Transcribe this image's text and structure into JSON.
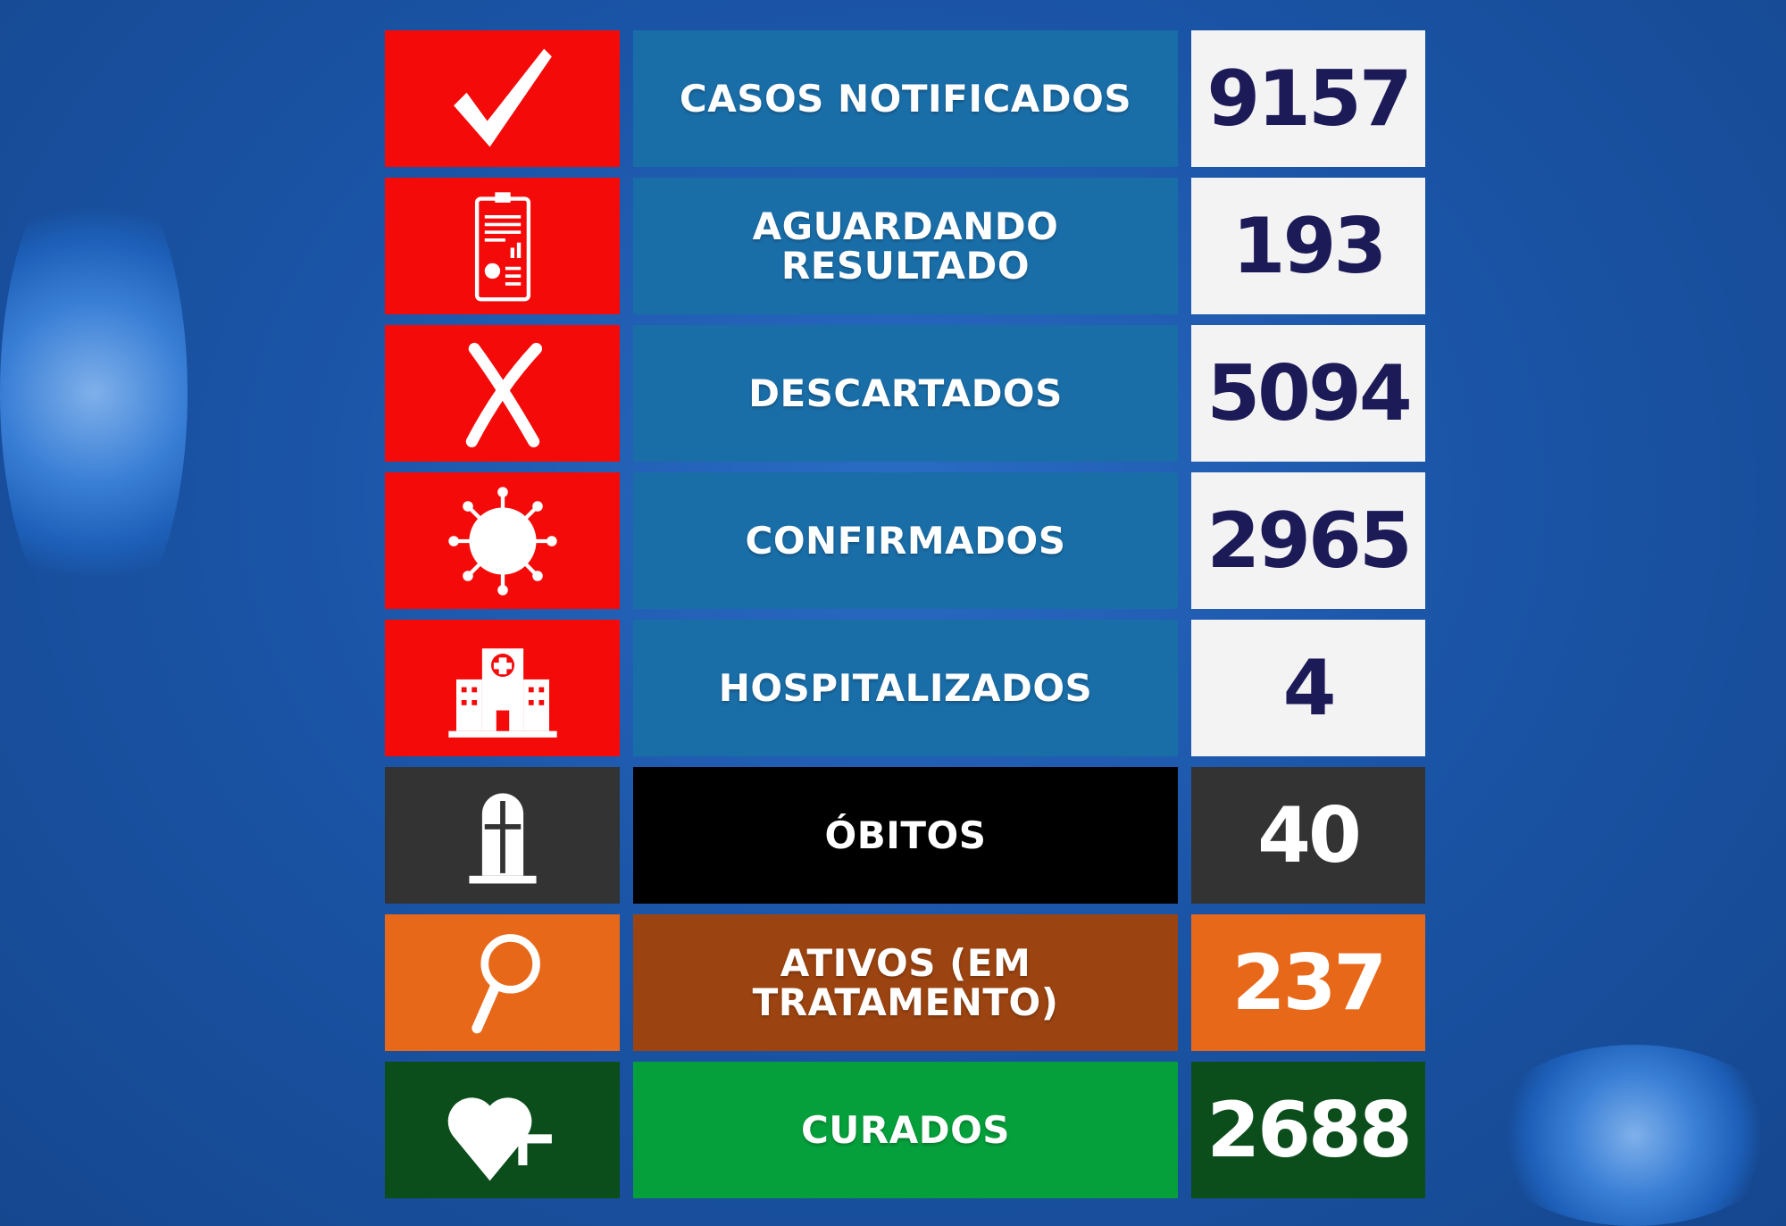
{
  "rows": [
    {
      "label": "CASOS NOTIFICADOS",
      "value": "9157",
      "icon": "checkmark-icon"
    },
    {
      "label": "AGUARDANDO RESULTADO",
      "value": "193",
      "icon": "clipboard-report-icon"
    },
    {
      "label": "DESCARTADOS",
      "value": "5094",
      "icon": "x-mark-icon"
    },
    {
      "label": "CONFIRMADOS",
      "value": "2965",
      "icon": "virus-icon"
    },
    {
      "label": "HOSPITALIZADOS",
      "value": "4",
      "icon": "hospital-icon"
    },
    {
      "label": "ÓBITOS",
      "value": "40",
      "icon": "tombstone-icon"
    },
    {
      "label": "ATIVOS (EM TRATAMENTO)",
      "value": "237",
      "icon": "magnifier-icon"
    },
    {
      "label": "CURADOS",
      "value": "2688",
      "icon": "heart-plus-icon"
    }
  ],
  "colors": {
    "red": "#f50a0a",
    "blue": "#1a6ea8",
    "navy_text": "#1c1a57",
    "dark_gray": "#333333",
    "black": "#000000",
    "orange": "#e8681a",
    "brown": "#9c4411",
    "dark_green": "#0c4d1c",
    "green": "#05a03c"
  }
}
